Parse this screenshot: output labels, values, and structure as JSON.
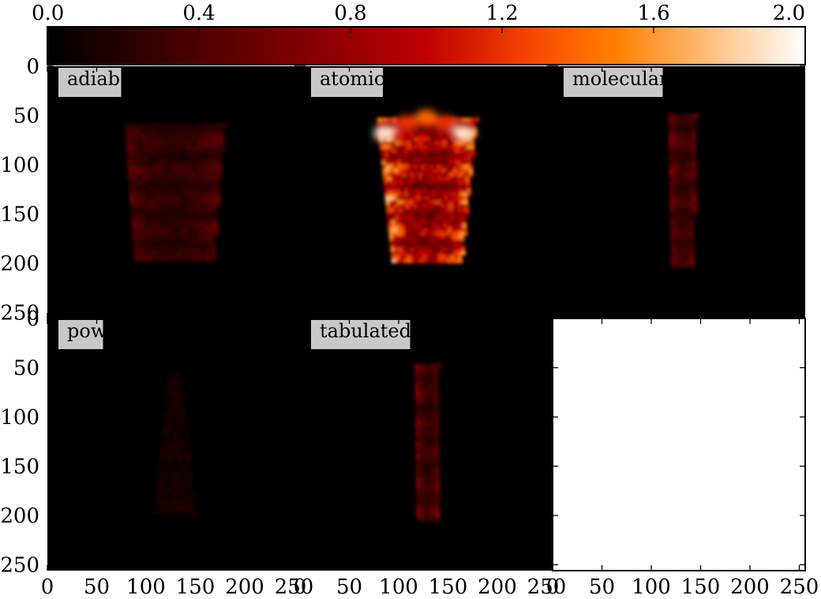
{
  "colorbar": {
    "colormap": "gist_heat",
    "range": [
      0.0,
      2.0
    ],
    "ticks": [
      "0.0",
      "0.4",
      "0.8",
      "1.2",
      "1.6",
      "2.0"
    ],
    "placement": "top"
  },
  "chart_data": [
    {
      "type": "heatmap",
      "label": "adiab",
      "xlim": [
        0,
        256
      ],
      "ylim": [
        256,
        0
      ],
      "yticks": [
        "0",
        "50",
        "100",
        "150",
        "200",
        "250"
      ],
      "xticks": [],
      "feature": {
        "x_center": 128,
        "x_halfwidth_top": 50,
        "x_halfwidth_bottom": 40,
        "y_top": 58,
        "y_bottom": 195,
        "peak": 0.6
      }
    },
    {
      "type": "heatmap",
      "label": "atomic",
      "xlim": [
        0,
        256
      ],
      "ylim": [
        256,
        0
      ],
      "yticks": [],
      "xticks": [],
      "feature": {
        "x_center": 128,
        "x_halfwidth_top": 50,
        "x_halfwidth_bottom": 35,
        "y_top": 52,
        "y_bottom": 198,
        "peak": 2.0
      }
    },
    {
      "type": "heatmap",
      "label": "molecular",
      "xlim": [
        0,
        256
      ],
      "ylim": [
        256,
        0
      ],
      "yticks": [],
      "xticks": [],
      "feature": {
        "x_center": 131,
        "x_halfwidth_top": 14,
        "x_halfwidth_bottom": 11,
        "y_top": 48,
        "y_bottom": 202,
        "peak": 0.75
      }
    },
    {
      "type": "heatmap",
      "label": "pow",
      "xlim": [
        0,
        256
      ],
      "ylim": [
        256,
        0
      ],
      "yticks": [
        "0",
        "50",
        "100",
        "150",
        "200",
        "250"
      ],
      "xticks": [
        "0",
        "50",
        "100",
        "150",
        "200",
        "250"
      ],
      "feature": {
        "x_center": 128,
        "x_halfwidth_top": 6,
        "x_halfwidth_bottom": 20,
        "y_top": 55,
        "y_bottom": 195,
        "peak": 0.18
      }
    },
    {
      "type": "heatmap",
      "label": "tabulated",
      "xlim": [
        0,
        256
      ],
      "ylim": [
        256,
        0
      ],
      "yticks": [],
      "xticks": [
        "0",
        "50",
        "100",
        "150",
        "200",
        "250"
      ],
      "feature": {
        "x_center": 128,
        "x_halfwidth_top": 12,
        "x_halfwidth_bottom": 10,
        "y_top": 46,
        "y_bottom": 205,
        "peak": 0.75
      }
    },
    {
      "type": "heatmap",
      "label": "",
      "empty": true,
      "xlim": [
        0,
        256
      ],
      "ylim": [
        256,
        0
      ],
      "yticks": [],
      "xticks": [
        "0",
        "50",
        "100",
        "150",
        "200",
        "250"
      ]
    }
  ]
}
